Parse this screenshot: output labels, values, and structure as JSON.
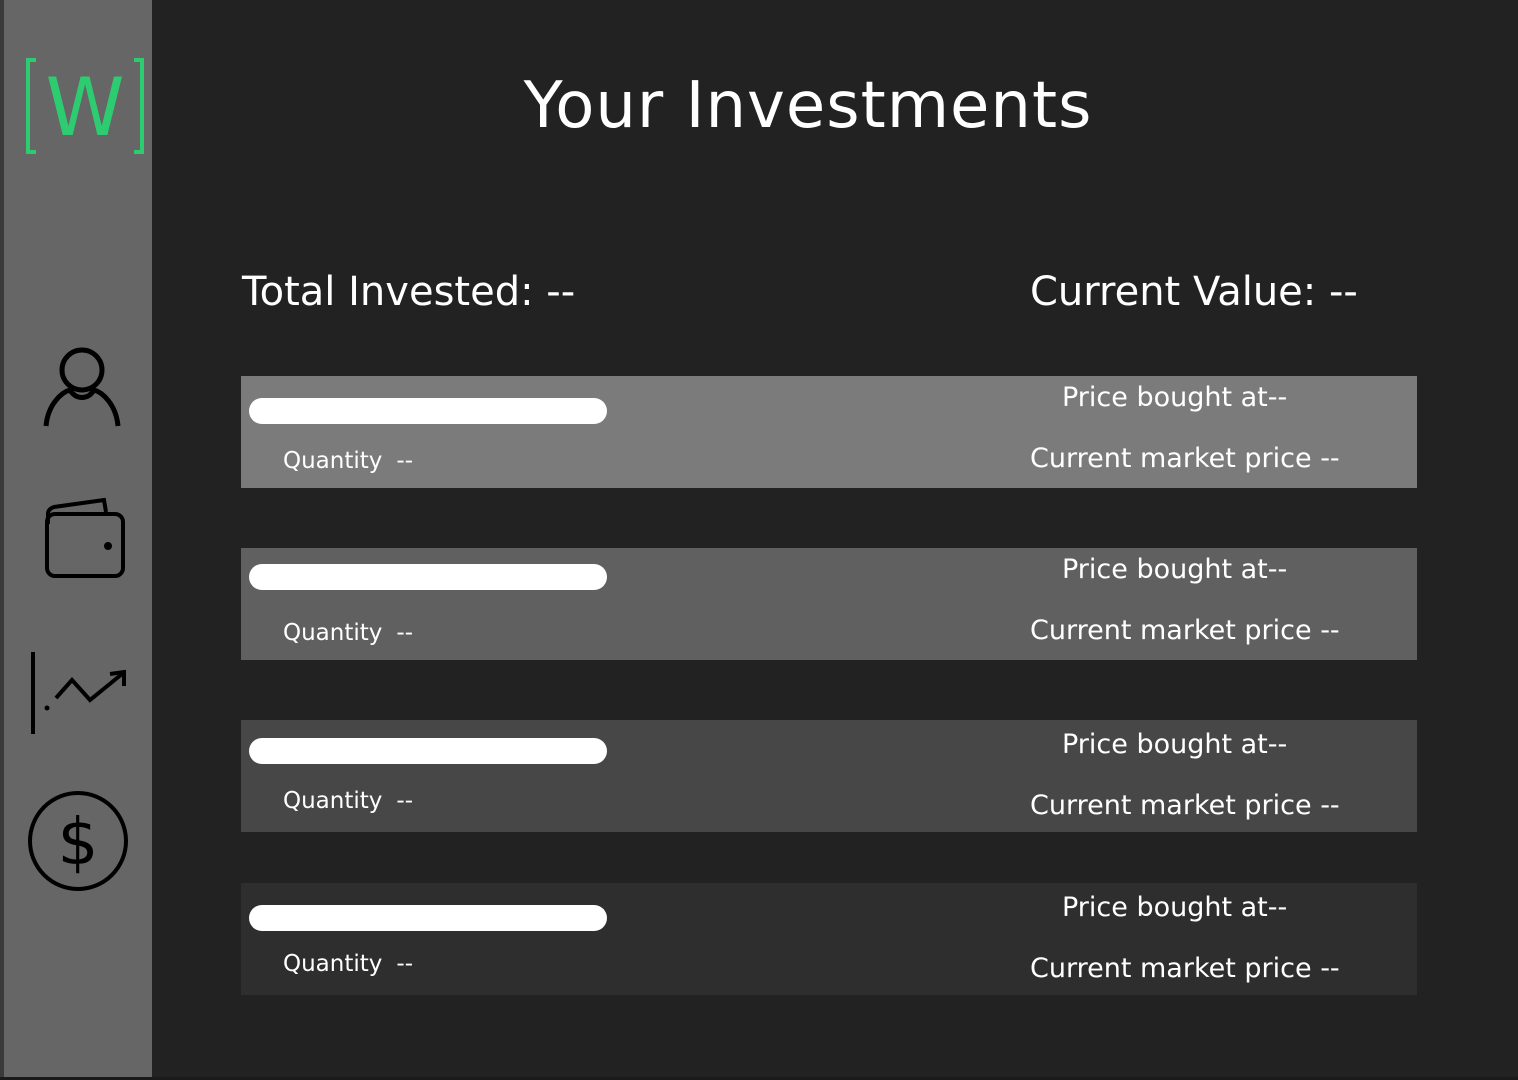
{
  "app": {
    "logo_letter": "W",
    "accent_color": "#2ecc71"
  },
  "sidebar": {
    "items": [
      {
        "name": "profile",
        "icon": "user-icon"
      },
      {
        "name": "wallet",
        "icon": "wallet-icon"
      },
      {
        "name": "investments",
        "icon": "trending-up-icon"
      },
      {
        "name": "payments",
        "icon": "dollar-circle-icon"
      }
    ]
  },
  "header": {
    "title": "Your Investments"
  },
  "summary": {
    "total_invested_label": "Total Invested:",
    "total_invested_value": "--",
    "current_value_label": "Current Value:",
    "current_value_value": "--"
  },
  "investments": [
    {
      "quantity_label": "Quantity",
      "quantity_value": "--",
      "price_bought_label": "Price bought at",
      "price_bought_value": "--",
      "market_price_label": "Current market price",
      "market_price_value": "--",
      "background": "#7b7b7b"
    },
    {
      "quantity_label": "Quantity",
      "quantity_value": "--",
      "price_bought_label": "Price bought at",
      "price_bought_value": "--",
      "market_price_label": "Current market price",
      "market_price_value": "--",
      "background": "#606060"
    },
    {
      "quantity_label": "Quantity",
      "quantity_value": "--",
      "price_bought_label": "Price bought at",
      "price_bought_value": "--",
      "market_price_label": "Current market price",
      "market_price_value": "--",
      "background": "#474747"
    },
    {
      "quantity_label": "Quantity",
      "quantity_value": "--",
      "price_bought_label": "Price bought at",
      "price_bought_value": "--",
      "market_price_label": "Current market price",
      "market_price_value": "--",
      "background": "#2e2e2e"
    }
  ]
}
